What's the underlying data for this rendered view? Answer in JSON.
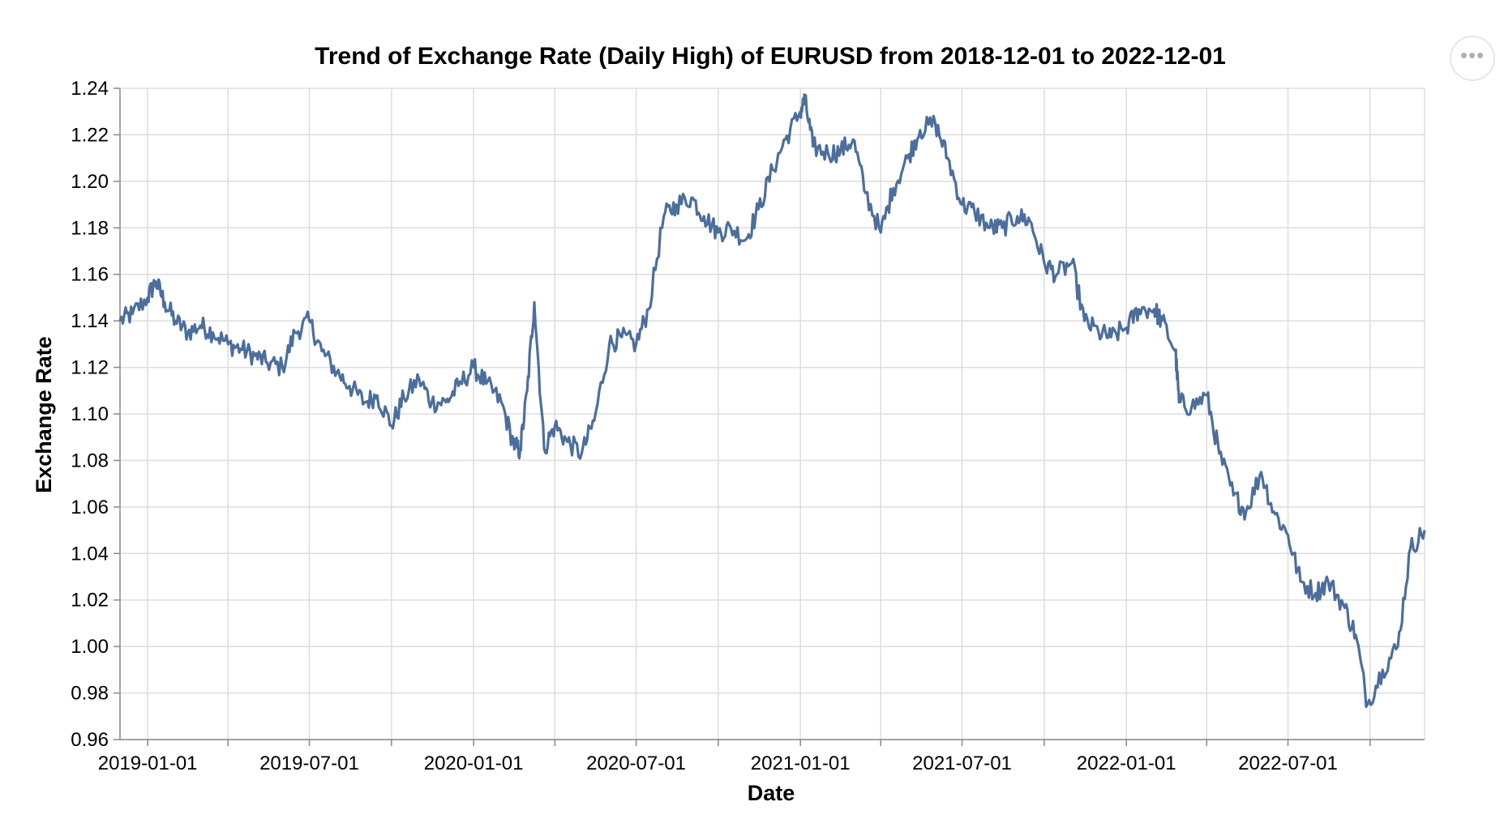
{
  "chart_data": {
    "type": "line",
    "title": "Trend of Exchange Rate (Daily High) of EURUSD from 2018-12-01 to 2022-12-01",
    "xlabel": "Date",
    "ylabel": "Exchange Rate",
    "xlim": [
      "2018-12-01",
      "2022-12-01"
    ],
    "ylim": [
      0.96,
      1.24
    ],
    "x_tick_labels": [
      "2019-01-01",
      "2019-07-01",
      "2020-01-01",
      "2020-07-01",
      "2021-01-01",
      "2021-07-01",
      "2022-01-01",
      "2022-07-01"
    ],
    "y_ticks": [
      "0.96",
      "0.98",
      "1.00",
      "1.02",
      "1.04",
      "1.06",
      "1.08",
      "1.10",
      "1.12",
      "1.14",
      "1.16",
      "1.18",
      "1.20",
      "1.22",
      "1.24"
    ],
    "grid": true,
    "line_color": "#4c6e9c",
    "series": [
      {
        "x": [
          "2018-12-01",
          "2018-12-15",
          "2019-01-01",
          "2019-01-10",
          "2019-01-20",
          "2019-02-01",
          "2019-02-15",
          "2019-03-01",
          "2019-03-15",
          "2019-04-01",
          "2019-04-15",
          "2019-05-01",
          "2019-05-15",
          "2019-06-01",
          "2019-06-15",
          "2019-07-01",
          "2019-07-15",
          "2019-08-01",
          "2019-08-15",
          "2019-09-01",
          "2019-09-15",
          "2019-10-01",
          "2019-10-15",
          "2019-11-01",
          "2019-11-15",
          "2019-12-01",
          "2019-12-15",
          "2020-01-01",
          "2020-01-15",
          "2020-02-01",
          "2020-02-15",
          "2020-02-22",
          "2020-03-01",
          "2020-03-09",
          "2020-03-20",
          "2020-04-01",
          "2020-04-15",
          "2020-05-01",
          "2020-05-15",
          "2020-06-01",
          "2020-06-15",
          "2020-07-01",
          "2020-07-15",
          "2020-08-01",
          "2020-08-15",
          "2020-09-01",
          "2020-09-15",
          "2020-10-01",
          "2020-10-15",
          "2020-11-01",
          "2020-11-15",
          "2020-12-01",
          "2020-12-15",
          "2021-01-01",
          "2021-01-06",
          "2021-01-15",
          "2021-02-01",
          "2021-02-15",
          "2021-03-01",
          "2021-03-15",
          "2021-04-01",
          "2021-04-15",
          "2021-05-01",
          "2021-05-15",
          "2021-06-01",
          "2021-06-15",
          "2021-07-01",
          "2021-07-15",
          "2021-08-01",
          "2021-08-15",
          "2021-09-01",
          "2021-09-15",
          "2021-10-01",
          "2021-10-15",
          "2021-11-01",
          "2021-11-15",
          "2021-12-01",
          "2021-12-15",
          "2022-01-01",
          "2022-01-15",
          "2022-02-01",
          "2022-02-10",
          "2022-02-25",
          "2022-03-01",
          "2022-03-15",
          "2022-04-01",
          "2022-04-15",
          "2022-05-01",
          "2022-05-15",
          "2022-06-01",
          "2022-06-15",
          "2022-07-01",
          "2022-07-15",
          "2022-08-01",
          "2022-08-15",
          "2022-09-01",
          "2022-09-15",
          "2022-09-28",
          "2022-10-15",
          "2022-11-01",
          "2022-11-15",
          "2022-12-01"
        ],
        "y": [
          1.14,
          1.143,
          1.15,
          1.157,
          1.148,
          1.14,
          1.135,
          1.138,
          1.135,
          1.13,
          1.128,
          1.125,
          1.122,
          1.12,
          1.135,
          1.14,
          1.127,
          1.118,
          1.112,
          1.105,
          1.108,
          1.095,
          1.107,
          1.115,
          1.105,
          1.105,
          1.112,
          1.12,
          1.113,
          1.105,
          1.087,
          1.084,
          1.11,
          1.148,
          1.085,
          1.095,
          1.088,
          1.083,
          1.097,
          1.13,
          1.133,
          1.13,
          1.145,
          1.185,
          1.19,
          1.193,
          1.185,
          1.178,
          1.18,
          1.175,
          1.188,
          1.205,
          1.218,
          1.23,
          1.235,
          1.215,
          1.212,
          1.213,
          1.218,
          1.195,
          1.178,
          1.197,
          1.21,
          1.222,
          1.225,
          1.21,
          1.19,
          1.187,
          1.18,
          1.18,
          1.185,
          1.183,
          1.165,
          1.16,
          1.165,
          1.14,
          1.135,
          1.133,
          1.137,
          1.145,
          1.145,
          1.14,
          1.127,
          1.105,
          1.103,
          1.108,
          1.083,
          1.065,
          1.058,
          1.075,
          1.058,
          1.048,
          1.028,
          1.023,
          1.028,
          1.018,
          1.005,
          0.975,
          0.99,
          1.0,
          1.042,
          1.05
        ]
      }
    ]
  },
  "ui": {
    "menu_icon": "ellipsis-icon"
  }
}
